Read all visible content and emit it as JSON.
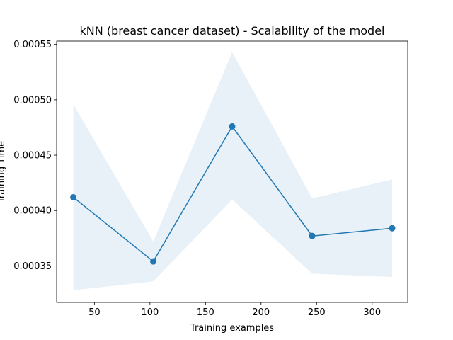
{
  "chart_data": {
    "type": "line",
    "title": "kNN (breast cancer dataset) - Scalability of the model",
    "xlabel": "Training examples",
    "ylabel": "Training Time",
    "xlim": [
      16,
      332
    ],
    "ylim": [
      0.000317,
      0.000553
    ],
    "xticks": [
      50,
      100,
      150,
      200,
      250,
      300
    ],
    "yticks": [
      0.00035,
      0.0004,
      0.00045,
      0.0005,
      0.00055
    ],
    "ytick_labels": [
      "0.00035",
      "0.00040",
      "0.00045",
      "0.00050",
      "0.00055"
    ],
    "series": [
      {
        "name": "Training time",
        "x": [
          31,
          103,
          174,
          246,
          318
        ],
        "y": [
          0.000412,
          0.000354,
          0.000476,
          0.000377,
          0.000384
        ],
        "band_upper": [
          0.000496,
          0.000372,
          0.000543,
          0.000411,
          0.000428
        ],
        "band_lower": [
          0.000328,
          0.000336,
          0.00041,
          0.000343,
          0.00034
        ]
      }
    ],
    "grid": false,
    "colors": {
      "line": "#1f77b4",
      "band": "#1f77b4"
    }
  }
}
